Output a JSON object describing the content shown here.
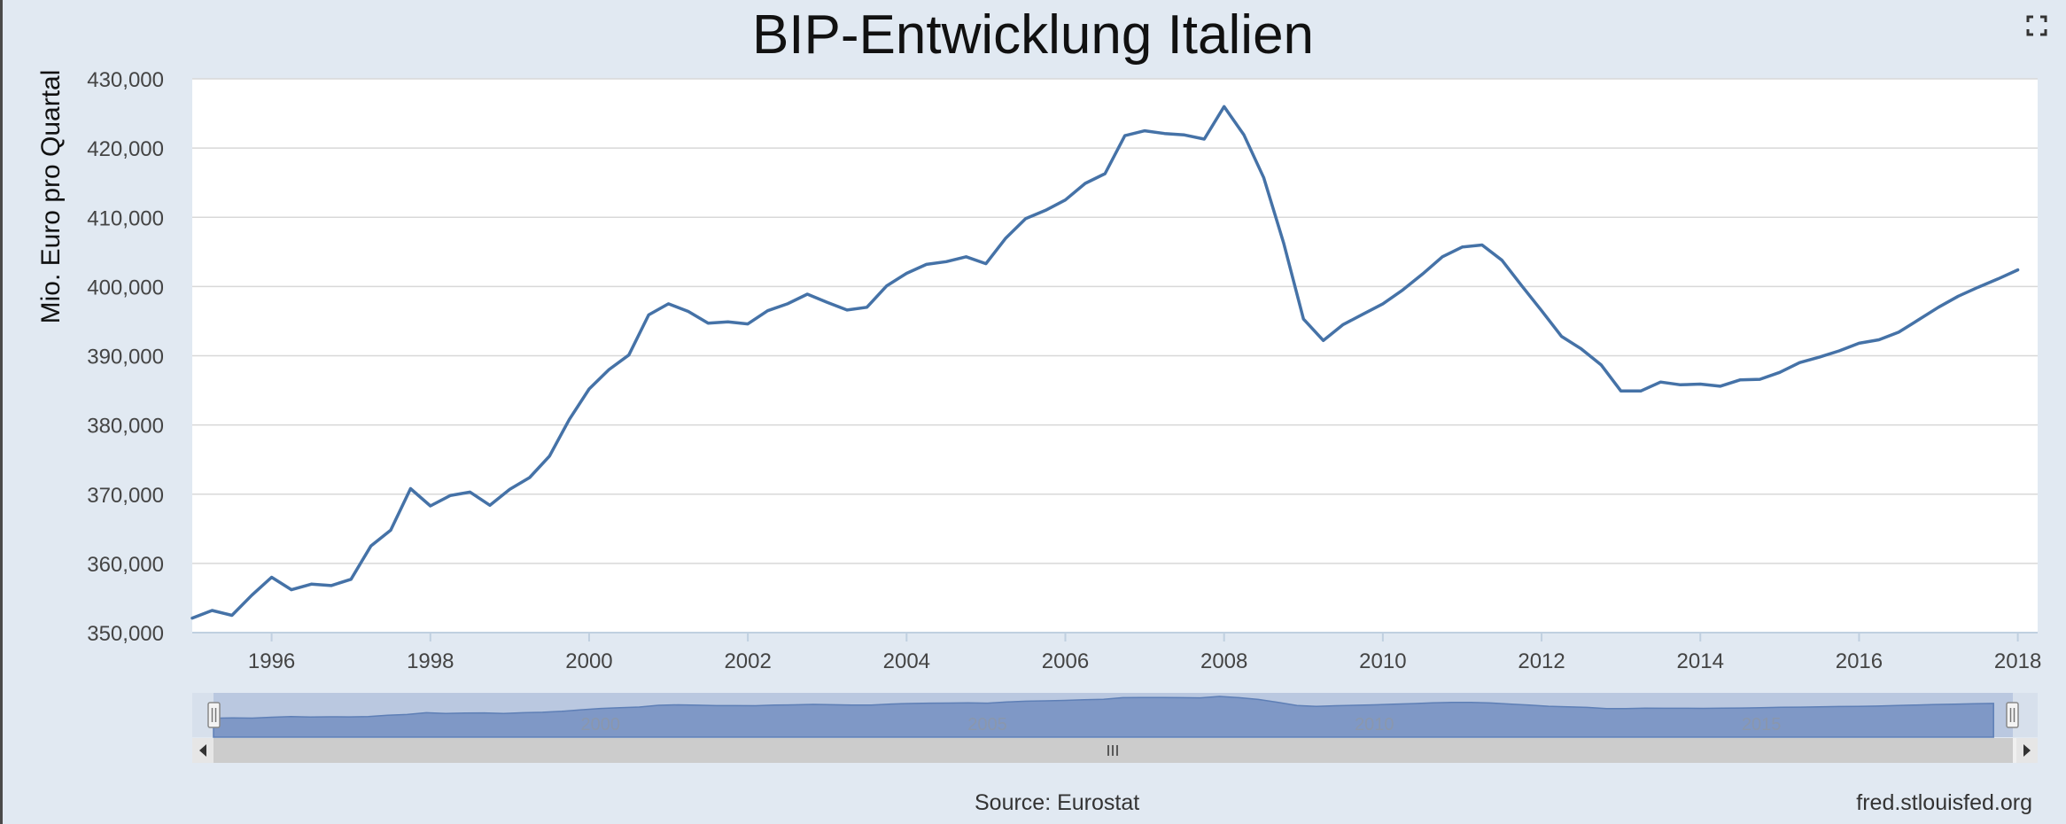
{
  "chart_data": {
    "type": "line",
    "title": "BIP-Entwicklung Italien",
    "xlabel": "",
    "ylabel": "Mio. Euro pro Quartal",
    "ylim": [
      350000,
      430000
    ],
    "xlim": [
      1995.0,
      2018.25
    ],
    "y_ticks": [
      "350,000",
      "360,000",
      "370,000",
      "380,000",
      "390,000",
      "400,000",
      "410,000",
      "420,000",
      "430,000"
    ],
    "x_ticks": [
      "1996",
      "1998",
      "2000",
      "2002",
      "2004",
      "2006",
      "2008",
      "2010",
      "2012",
      "2014",
      "2016",
      "2018"
    ],
    "grid": true,
    "series": [
      {
        "color": "#4572a7",
        "x": [
          1995.0,
          1995.25,
          1995.5,
          1995.75,
          1996.0,
          1996.25,
          1996.5,
          1996.75,
          1997.0,
          1997.25,
          1997.5,
          1997.75,
          1998.0,
          1998.25,
          1998.5,
          1998.75,
          1999.0,
          1999.25,
          1999.5,
          1999.75,
          2000.0,
          2000.25,
          2000.5,
          2000.75,
          2001.0,
          2001.25,
          2001.5,
          2001.75,
          2002.0,
          2002.25,
          2002.5,
          2002.75,
          2003.0,
          2003.25,
          2003.5,
          2003.75,
          2004.0,
          2004.25,
          2004.5,
          2004.75,
          2005.0,
          2005.25,
          2005.5,
          2005.75,
          2006.0,
          2006.25,
          2006.5,
          2006.75,
          2007.0,
          2007.25,
          2007.5,
          2007.75,
          2008.0,
          2008.25,
          2008.5,
          2008.75,
          2009.0,
          2009.25,
          2009.5,
          2009.75,
          2010.0,
          2010.25,
          2010.5,
          2010.75,
          2011.0,
          2011.25,
          2011.5,
          2011.75,
          2012.0,
          2012.25,
          2012.5,
          2012.75,
          2013.0,
          2013.25,
          2013.5,
          2013.75,
          2014.0,
          2014.25,
          2014.5,
          2014.75,
          2015.0,
          2015.25,
          2015.5,
          2015.75,
          2016.0,
          2016.25,
          2016.5,
          2016.75,
          2017.0,
          2017.25,
          2017.5,
          2017.75,
          2018.0
        ],
        "y": [
          352100,
          353200,
          352500,
          355400,
          358000,
          356200,
          357000,
          356800,
          357700,
          362500,
          364800,
          370800,
          368300,
          369800,
          370300,
          368400,
          370700,
          372400,
          375500,
          380800,
          385200,
          388000,
          390100,
          395900,
          397500,
          396400,
          394700,
          394900,
          394600,
          396500,
          397500,
          398900,
          397700,
          396600,
          397000,
          400100,
          401900,
          403200,
          403600,
          404300,
          403300,
          407000,
          409800,
          411000,
          412500,
          414900,
          416300,
          421800,
          422500,
          422100,
          421900,
          421300,
          426000,
          421900,
          415700,
          406300,
          395300,
          392200,
          394500,
          396000,
          397500,
          399500,
          401800,
          404300,
          405700,
          406000,
          403800,
          400100,
          396500,
          392800,
          391000,
          388700,
          384900,
          384900,
          386200,
          385800,
          385900,
          385600,
          386500,
          386600,
          387600,
          389000,
          389800,
          390700,
          391800,
          392300,
          393400,
          395200,
          397000,
          398600,
          399900,
          401100,
          402400
        ]
      }
    ],
    "navigator": {
      "labels": [
        "2000",
        "2005",
        "2010",
        "2015"
      ]
    },
    "credits": {
      "source": "Source: Eurostat",
      "site": "fred.stlouisfed.org"
    }
  }
}
